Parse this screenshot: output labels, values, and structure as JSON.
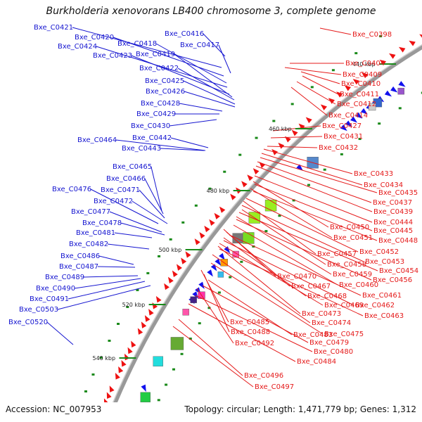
{
  "title": "Burkholderia xenovorans LB400 chromosome 3, complete genome",
  "footer": {
    "accession": "Accession: NC_007953",
    "summary": "Topology: circular; Length: 1,471,779 bp; Genes: 1,312"
  },
  "colors": {
    "left_labels": "#1515d0",
    "right_labels": "#e51a1a",
    "backbone": "#999999",
    "forward_genes": "#ee1111",
    "reverse_genes": "#1111ee"
  },
  "ticks": [
    "440 kbp",
    "460 kbp",
    "480 kbp",
    "500 kbp",
    "520 kbp",
    "540 kbp"
  ],
  "left_labels": [
    "Bxe_C0421",
    "Bxe_C0420",
    "Bxe_C0418",
    "Bxe_C0416",
    "Bxe_C0424",
    "Bxe_C0417",
    "Bxe_C0423",
    "Bxe_C0419",
    "Bxe_C0422",
    "Bxe_C0425",
    "Bxe_C0426",
    "Bxe_C0428",
    "Bxe_C0429",
    "Bxe_C0430",
    "Bxe_C0464",
    "Bxe_C0442",
    "Bxe_C0443",
    "Bxe_C0465",
    "Bxe_C0466",
    "Bxe_C0476",
    "Bxe_C0471",
    "Bxe_C0472",
    "Bxe_C0477",
    "Bxe_C0478",
    "Bxe_C0481",
    "Bxe_C0482",
    "Bxe_C0486",
    "Bxe_C0487",
    "Bxe_C0489",
    "Bxe_C0490",
    "Bxe_C0491",
    "Bxe_C0503",
    "Bxe_C0520"
  ],
  "right_labels": [
    "Bxe_C0398",
    "Bxe_C0404",
    "Bxe_C0409",
    "Bxe_C0410",
    "Bxe_C0411",
    "Bxe_C0412",
    "Bxe_C0414",
    "Bxe_C0427",
    "Bxe_C0431",
    "Bxe_C0432",
    "Bxe_C0433",
    "Bxe_C0434",
    "Bxe_C0435",
    "Bxe_C0437",
    "Bxe_C0439",
    "Bxe_C0444",
    "Bxe_C0450",
    "Bxe_C0445",
    "Bxe_C0451",
    "Bxe_C0448",
    "Bxe_C0452",
    "Bxe_C0457",
    "Bxe_C0453",
    "Bxe_C0458",
    "Bxe_C0454",
    "Bxe_C0459",
    "Bxe_C0456",
    "Bxe_C0470",
    "Bxe_C0460",
    "Bxe_C0467",
    "Bxe_C0461",
    "Bxe_C0468",
    "Bxe_C0462",
    "Bxe_C0469",
    "Bxe_C0473",
    "Bxe_C0463",
    "Bxe_C0474",
    "Bxe_C0485",
    "Bxe_C0475",
    "Bxe_C0488",
    "Bxe_C0483",
    "Bxe_C0479",
    "Bxe_C0492",
    "Bxe_C0480",
    "Bxe_C0484",
    "Bxe_C0496",
    "Bxe_C0497"
  ]
}
